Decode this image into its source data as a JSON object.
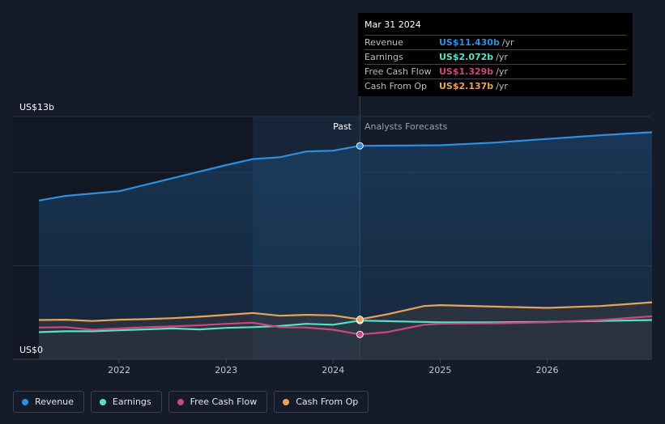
{
  "chart_data": {
    "type": "line",
    "ylabel_top": "US$13b",
    "ylabel_bottom": "US$0",
    "ylim": [
      0,
      13
    ],
    "x_ticks": [
      "2022",
      "2023",
      "2024",
      "2025",
      "2026"
    ],
    "past_label": "Past",
    "forecast_label": "Analysts Forecasts",
    "series": [
      {
        "name": "Revenue",
        "color": "#2e8fe0",
        "values": [
          [
            2021.25,
            8.5
          ],
          [
            2021.5,
            8.75
          ],
          [
            2021.75,
            8.88
          ],
          [
            2022.0,
            9.0
          ],
          [
            2022.25,
            9.35
          ],
          [
            2022.5,
            9.7
          ],
          [
            2022.75,
            10.05
          ],
          [
            2023.0,
            10.4
          ],
          [
            2023.25,
            10.72
          ],
          [
            2023.5,
            10.82
          ],
          [
            2023.75,
            11.13
          ],
          [
            2024.0,
            11.17
          ],
          [
            2024.25,
            11.43
          ],
          [
            2024.5,
            11.44
          ],
          [
            2025.0,
            11.46
          ],
          [
            2025.5,
            11.6
          ],
          [
            2026.0,
            11.8
          ],
          [
            2026.5,
            12.0
          ],
          [
            2026.98,
            12.16
          ]
        ]
      },
      {
        "name": "Earnings",
        "color": "#58e1c4",
        "values": [
          [
            2021.25,
            1.45
          ],
          [
            2021.5,
            1.5
          ],
          [
            2021.75,
            1.5
          ],
          [
            2022.0,
            1.55
          ],
          [
            2022.5,
            1.65
          ],
          [
            2022.75,
            1.6
          ],
          [
            2023.0,
            1.68
          ],
          [
            2023.25,
            1.72
          ],
          [
            2023.5,
            1.78
          ],
          [
            2023.75,
            1.9
          ],
          [
            2024.0,
            1.85
          ],
          [
            2024.25,
            2.072
          ],
          [
            2024.5,
            2.04
          ],
          [
            2025.0,
            1.98
          ],
          [
            2025.5,
            1.98
          ],
          [
            2026.0,
            2.0
          ],
          [
            2026.5,
            2.05
          ],
          [
            2026.98,
            2.1
          ]
        ]
      },
      {
        "name": "Free Cash Flow",
        "color": "#c9487e",
        "values": [
          [
            2021.25,
            1.7
          ],
          [
            2021.5,
            1.72
          ],
          [
            2021.75,
            1.58
          ],
          [
            2022.0,
            1.65
          ],
          [
            2022.25,
            1.72
          ],
          [
            2022.5,
            1.76
          ],
          [
            2022.75,
            1.82
          ],
          [
            2023.0,
            1.9
          ],
          [
            2023.25,
            1.96
          ],
          [
            2023.5,
            1.72
          ],
          [
            2023.75,
            1.7
          ],
          [
            2024.0,
            1.58
          ],
          [
            2024.25,
            1.329
          ],
          [
            2024.5,
            1.45
          ],
          [
            2024.85,
            1.85
          ],
          [
            2025.0,
            1.9
          ],
          [
            2025.5,
            1.92
          ],
          [
            2026.0,
            1.98
          ],
          [
            2026.5,
            2.1
          ],
          [
            2026.98,
            2.3
          ]
        ]
      },
      {
        "name": "Cash From Op",
        "color": "#e8a55a",
        "values": [
          [
            2021.25,
            2.1
          ],
          [
            2021.5,
            2.12
          ],
          [
            2021.75,
            2.05
          ],
          [
            2022.0,
            2.12
          ],
          [
            2022.25,
            2.15
          ],
          [
            2022.5,
            2.2
          ],
          [
            2022.75,
            2.28
          ],
          [
            2023.0,
            2.38
          ],
          [
            2023.25,
            2.48
          ],
          [
            2023.5,
            2.33
          ],
          [
            2023.75,
            2.38
          ],
          [
            2024.0,
            2.35
          ],
          [
            2024.25,
            2.137
          ],
          [
            2024.5,
            2.4
          ],
          [
            2024.85,
            2.85
          ],
          [
            2025.0,
            2.9
          ],
          [
            2025.5,
            2.82
          ],
          [
            2026.0,
            2.75
          ],
          [
            2026.5,
            2.85
          ],
          [
            2026.98,
            3.05
          ]
        ]
      }
    ],
    "past_end": 2024.25,
    "highlight_start": 2023.25,
    "grid": true,
    "legend_position": "bottom-left"
  },
  "tooltip": {
    "date": "Mar 31 2024",
    "rows": [
      {
        "label": "Revenue",
        "value": "US$11.430b",
        "unit": "/yr",
        "color": "#2e8fe0"
      },
      {
        "label": "Earnings",
        "value": "US$2.072b",
        "unit": "/yr",
        "color": "#58e1c4"
      },
      {
        "label": "Free Cash Flow",
        "value": "US$1.329b",
        "unit": "/yr",
        "color": "#c9487e"
      },
      {
        "label": "Cash From Op",
        "value": "US$2.137b",
        "unit": "/yr",
        "color": "#e8a55a"
      }
    ]
  },
  "legend": [
    {
      "label": "Revenue",
      "color": "#2e8fe0"
    },
    {
      "label": "Earnings",
      "color": "#58e1c4"
    },
    {
      "label": "Free Cash Flow",
      "color": "#c9487e"
    },
    {
      "label": "Cash From Op",
      "color": "#e8a55a"
    }
  ]
}
